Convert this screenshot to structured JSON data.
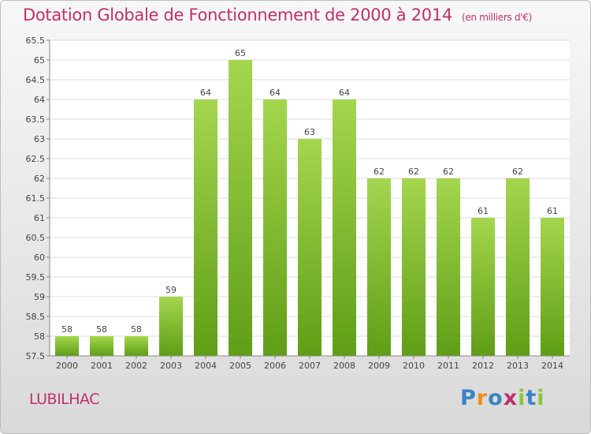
{
  "header": {
    "title": "Dotation Globale de Fonctionnement de 2000 à 2014",
    "subtitle": "(en milliers d'€)"
  },
  "place": "LUBILHAC",
  "logo": {
    "text": "Proxiti"
  },
  "colors": {
    "title": "#c0306b",
    "bar_top": "#a4d64e",
    "bar_bottom": "#5f9e16"
  },
  "chart_data": {
    "type": "bar",
    "title": "Dotation Globale de Fonctionnement de 2000 à 2014",
    "subtitle": "(en milliers d'€)",
    "xlabel": "",
    "ylabel": "",
    "categories": [
      "2000",
      "2001",
      "2002",
      "2003",
      "2004",
      "2005",
      "2006",
      "2007",
      "2008",
      "2009",
      "2010",
      "2011",
      "2012",
      "2013",
      "2014"
    ],
    "values": [
      58,
      58,
      58,
      59,
      64,
      65,
      64,
      63,
      64,
      62,
      62,
      62,
      61,
      62,
      61
    ],
    "data_labels": [
      "58",
      "58",
      "58",
      "59",
      "64",
      "65",
      "64",
      "63",
      "64",
      "62",
      "62",
      "62",
      "61",
      "62",
      "61"
    ],
    "ylim": [
      57.5,
      65.5
    ],
    "yticks": [
      57.5,
      58,
      58.5,
      59,
      59.5,
      60,
      60.5,
      61,
      61.5,
      62,
      62.5,
      63,
      63.5,
      64,
      64.5,
      65,
      65.5
    ],
    "ytick_labels": [
      "57.5",
      "58",
      "58.5",
      "59",
      "59.5",
      "60",
      "60.5",
      "61",
      "61.5",
      "62",
      "62.5",
      "63",
      "63.5",
      "64",
      "64.5",
      "65",
      "65.5"
    ],
    "grid": true,
    "legend": "none"
  }
}
